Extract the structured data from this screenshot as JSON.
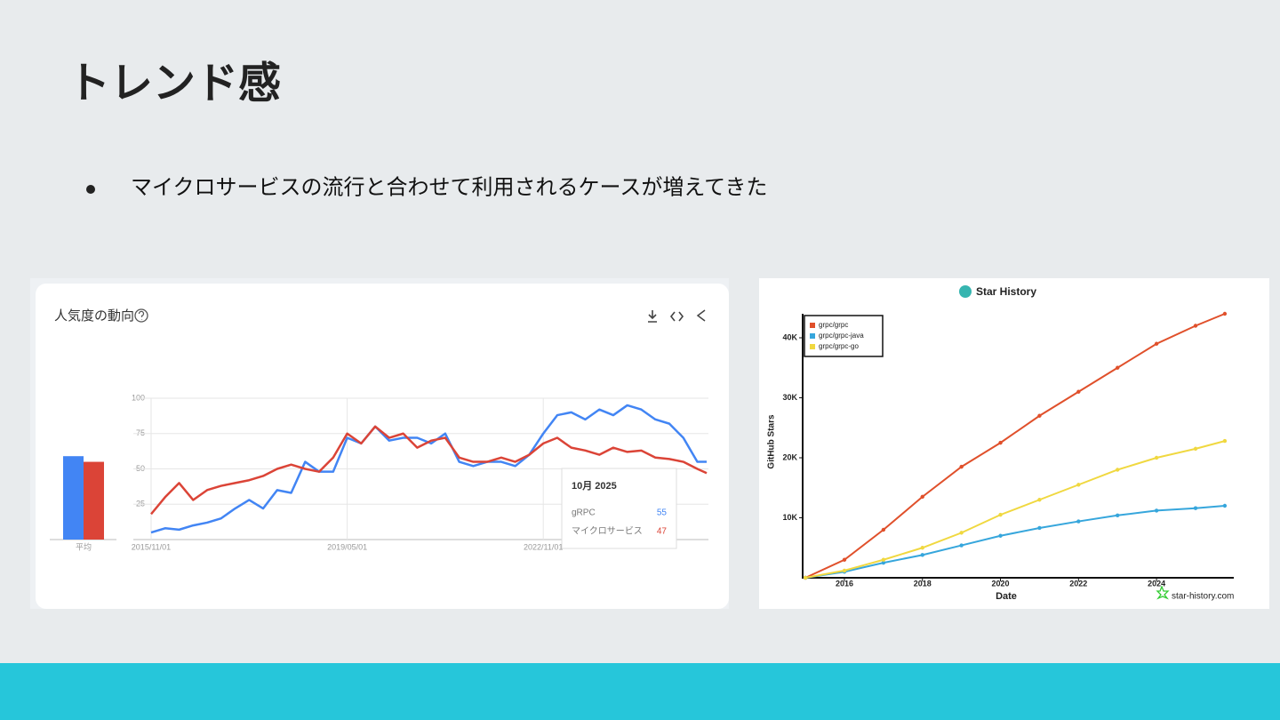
{
  "title": "トレンド感",
  "bullets": [
    "マイクロサービスの流行と合わせて利用されるケースが増えてきた"
  ],
  "chart_data": [
    {
      "type": "line",
      "title": "人気度の動向",
      "x": [
        "2015/11/01",
        "2016/02/01",
        "2016/05/01",
        "2016/08/01",
        "2016/11/01",
        "2017/02/01",
        "2017/05/01",
        "2017/08/01",
        "2017/11/01",
        "2018/02/01",
        "2018/05/01",
        "2018/08/01",
        "2018/11/01",
        "2019/02/01",
        "2019/05/01",
        "2019/08/01",
        "2019/11/01",
        "2020/02/01",
        "2020/05/01",
        "2020/08/01",
        "2020/11/01",
        "2021/02/01",
        "2021/05/01",
        "2021/08/01",
        "2021/11/01",
        "2022/02/01",
        "2022/05/01",
        "2022/08/01",
        "2022/11/01",
        "2023/02/01",
        "2023/05/01",
        "2023/08/01",
        "2023/11/01",
        "2024/02/01",
        "2024/05/01",
        "2024/08/01",
        "2024/11/01",
        "2025/02/01",
        "2025/05/01",
        "2025/08/01",
        "2025/10/01"
      ],
      "series": [
        {
          "name": "gRPC",
          "color": "#4285f4",
          "values": [
            5,
            8,
            7,
            10,
            12,
            15,
            22,
            28,
            22,
            35,
            33,
            55,
            48,
            48,
            72,
            68,
            80,
            70,
            72,
            72,
            68,
            75,
            55,
            52,
            55,
            55,
            52,
            60,
            75,
            88,
            90,
            85,
            92,
            88,
            95,
            92,
            85,
            82,
            72,
            55,
            55
          ]
        },
        {
          "name": "マイクロサービス",
          "color": "#db4437",
          "values": [
            18,
            30,
            40,
            28,
            35,
            38,
            40,
            42,
            45,
            50,
            53,
            50,
            48,
            58,
            75,
            68,
            80,
            72,
            75,
            65,
            70,
            72,
            58,
            55,
            55,
            58,
            55,
            60,
            68,
            72,
            65,
            63,
            60,
            65,
            62,
            63,
            58,
            57,
            55,
            50,
            47
          ]
        }
      ],
      "xlim": [
        "2015/11/01",
        "2025/10/01"
      ],
      "xticks": [
        "2015/11/01",
        "2019/05/01",
        "2022/11/01"
      ],
      "ylim": [
        0,
        100
      ],
      "yticks": [
        25,
        50,
        75,
        100
      ],
      "grid": true,
      "average": {
        "label": "平均",
        "values": [
          59,
          55
        ]
      },
      "tooltip": {
        "title": "10月 2025"
      }
    },
    {
      "type": "line",
      "title": "Star History",
      "x_label": "Date",
      "y_label": "GitHub Stars",
      "x": [
        2015.0,
        2016,
        2017,
        2018,
        2019,
        2020,
        2021,
        2022,
        2023,
        2024,
        2025,
        2025.75
      ],
      "series": [
        {
          "name": "grpc/grpc",
          "color": "#e0502b",
          "values": [
            0,
            3000,
            8000,
            13500,
            18500,
            22500,
            27000,
            31000,
            35000,
            39000,
            42000,
            44000
          ]
        },
        {
          "name": "grpc/grpc-java",
          "color": "#36a6dc",
          "values": [
            0,
            1000,
            2500,
            3800,
            5400,
            7000,
            8300,
            9400,
            10400,
            11200,
            11600,
            12000
          ]
        },
        {
          "name": "grpc/grpc-go",
          "color": "#f0d840",
          "values": [
            0,
            1200,
            3000,
            5000,
            7500,
            10500,
            13000,
            15500,
            18000,
            20000,
            21500,
            22800
          ]
        }
      ],
      "xlim": [
        2014.93,
        2025.98
      ],
      "xticks": [
        2016,
        2018,
        2020,
        2022,
        2024
      ],
      "ylim": [
        0,
        44000
      ],
      "yticks": [
        {
          "value": 10000,
          "label": "10K"
        },
        {
          "value": 20000,
          "label": "20K"
        },
        {
          "value": 30000,
          "label": "30K"
        },
        {
          "value": 40000,
          "label": "40K"
        }
      ],
      "legend": "top-left",
      "grid": false,
      "watermark": "star-history.com"
    }
  ]
}
